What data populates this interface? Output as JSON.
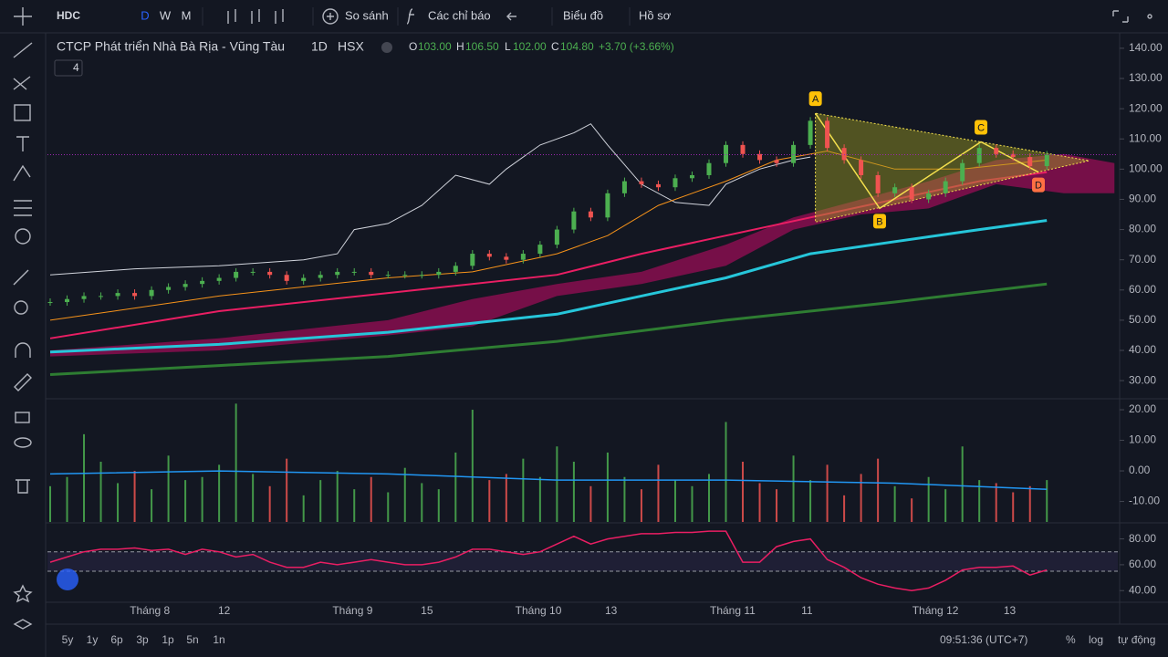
{
  "toolbar": {
    "symbol": "HDC",
    "intervals": [
      "D",
      "W",
      "M"
    ],
    "compare": "So sánh",
    "indicators": "Các chỉ báo",
    "chart": "Biểu đồ",
    "profile": "Hồ sơ"
  },
  "legend": {
    "name": "CTCP Phát triển Nhà Bà Rịa - Vũng Tàu",
    "interval": "1D",
    "exchange": "HSX",
    "ohlc": [
      {
        "key": "O",
        "value": "103.00"
      },
      {
        "key": "H",
        "value": "106.50"
      },
      {
        "key": "L",
        "value": "102.00"
      },
      {
        "key": "C",
        "value": "104.80"
      }
    ],
    "change": "+3.70 (+3.66%)",
    "indicator_count": 4
  },
  "chart_data": {
    "type": "candlestick",
    "xlim": [
      0,
      63.2
    ],
    "xticks": [
      {
        "value": 5.9,
        "label": "Tháng 8"
      },
      {
        "value": 10.3,
        "label": "12"
      },
      {
        "value": 17.9,
        "label": "Tháng 9"
      },
      {
        "value": 22.3,
        "label": "15"
      },
      {
        "value": 28.9,
        "label": "Tháng 10"
      },
      {
        "value": 33.2,
        "label": "13"
      },
      {
        "value": 40.4,
        "label": "Tháng 11"
      },
      {
        "value": 44.8,
        "label": "11"
      },
      {
        "value": 52.4,
        "label": "Tháng 12"
      },
      {
        "value": 56.8,
        "label": "13"
      }
    ],
    "ylim": [
      24.6,
      144.5
    ],
    "yticks": [
      {
        "value": 140,
        "label": "140.00"
      },
      {
        "value": 130,
        "label": "130.00"
      },
      {
        "value": 120,
        "label": "120.00"
      },
      {
        "value": 110,
        "label": "110.00"
      },
      {
        "value": 100,
        "label": "100.00"
      },
      {
        "value": 90,
        "label": "90.00"
      },
      {
        "value": 80,
        "label": "80.00"
      },
      {
        "value": 70,
        "label": "70.00"
      },
      {
        "value": 60,
        "label": "60.00"
      },
      {
        "value": 50,
        "label": "50.00"
      },
      {
        "value": 40,
        "label": "40.00"
      },
      {
        "value": 30,
        "label": "30.00"
      }
    ],
    "values": [
      56,
      57,
      58,
      58,
      59,
      58,
      60,
      61,
      62,
      63,
      64,
      66,
      66,
      65,
      63,
      64,
      65,
      66,
      66,
      65,
      65,
      65,
      65,
      66,
      68,
      72,
      71,
      70,
      72,
      75,
      80,
      86,
      84,
      92,
      96,
      95,
      94,
      97,
      98,
      102,
      108,
      105,
      103,
      102,
      108,
      116,
      107,
      103,
      98,
      92,
      94,
      90,
      92,
      96,
      102,
      107,
      105,
      104,
      101,
      104.8
    ],
    "up_color": "#4caf50",
    "down_color": "#ef5350",
    "series": [
      {
        "color": "#d1d4dc",
        "width": 1,
        "x": [
          0,
          5,
          10,
          15,
          17,
          18,
          20,
          22,
          24,
          26,
          27,
          29,
          31,
          32,
          33,
          35,
          37,
          39,
          40,
          42,
          44,
          45
        ],
        "values": [
          65,
          67,
          68,
          70,
          72,
          80,
          82,
          88,
          98,
          95,
          100,
          108,
          112,
          115,
          108,
          95,
          89,
          88,
          95,
          100,
          103,
          104
        ]
      },
      {
        "color": "#f7931a",
        "width": 1,
        "x": [
          0,
          10,
          20,
          25,
          30,
          33,
          36,
          40,
          43,
          46,
          50,
          54,
          59
        ],
        "values": [
          50,
          58,
          64,
          66,
          72,
          78,
          88,
          96,
          103,
          106,
          100,
          100,
          103
        ]
      },
      {
        "color": "#e91e63",
        "width": 2,
        "x": [
          0,
          10,
          20,
          30,
          35,
          40,
          45,
          50,
          55,
          59
        ],
        "values": [
          44,
          53,
          59,
          65,
          72,
          78,
          84,
          90,
          96,
          99
        ]
      },
      {
        "color": "#26c6da",
        "width": 3,
        "x": [
          0,
          10,
          20,
          30,
          40,
          45,
          50,
          55,
          59
        ],
        "values": [
          39.5,
          42,
          46,
          52,
          64,
          72,
          76,
          80,
          83
        ]
      },
      {
        "color": "#2e7d32",
        "width": 3,
        "x": [
          0,
          10,
          20,
          30,
          40,
          50,
          59
        ],
        "values": [
          32,
          35,
          38,
          43,
          50,
          56,
          62
        ]
      }
    ],
    "cloud": {
      "color": "#880e4f",
      "x": [
        0,
        10,
        20,
        25,
        30,
        35,
        40,
        44,
        48,
        52,
        56,
        60,
        63
      ],
      "upper": [
        40,
        44,
        50,
        57,
        62,
        66,
        75,
        84,
        90,
        96,
        103,
        105,
        102
      ],
      "lower": [
        38,
        40,
        45,
        48,
        58,
        62,
        68,
        80,
        85,
        87,
        95,
        92,
        92
      ]
    },
    "pattern": {
      "labels": [
        "A",
        "B",
        "C",
        "D"
      ],
      "label_colors": [
        "#ffc107",
        "#ffc107",
        "#ffc107",
        "#ff7043"
      ],
      "x": [
        45.3,
        49.1,
        55.1,
        58.5
      ],
      "values": [
        118.5,
        87,
        109,
        99
      ],
      "triangle": {
        "x": [
          45.3,
          45.3,
          61.5
        ],
        "values": [
          118.5,
          82.5,
          102.8
        ]
      },
      "color": "#f4e04d"
    },
    "volume": {
      "type": "bar",
      "ylim": [
        -16.7,
        22.7
      ],
      "yticks": [
        {
          "value": 20,
          "label": "20.00"
        },
        {
          "value": 10,
          "label": "10.00"
        },
        {
          "value": 0,
          "label": "0.00"
        },
        {
          "value": -10,
          "label": "-10.00"
        }
      ],
      "values": [
        -5,
        -2,
        12,
        3,
        -4,
        0,
        -6,
        5,
        -3,
        -2,
        2,
        22,
        -1,
        -5,
        4,
        -8,
        -3,
        0,
        -6,
        -2,
        -7,
        1,
        -4,
        -6,
        6,
        20,
        -3,
        -1,
        4,
        -2,
        8,
        3,
        -5,
        6,
        -2,
        -6,
        2,
        -3,
        -5,
        -1,
        16,
        3,
        -4,
        -6,
        5,
        -3,
        2,
        -8,
        -1,
        4,
        -5,
        -9,
        -2,
        -6,
        8,
        -3,
        -4,
        -7,
        -5,
        -3
      ],
      "line": {
        "color": "#2196f3",
        "x": [
          0,
          10,
          20,
          30,
          40,
          50,
          59
        ],
        "values": [
          -1,
          0,
          -1,
          -3,
          -3,
          -4,
          -6
        ]
      }
    },
    "rsi": {
      "type": "line",
      "color": "#e91e63",
      "ylim": [
        32.4,
        91
      ],
      "yticks": [
        {
          "value": 80,
          "label": "80.00"
        },
        {
          "value": 60,
          "label": "60.00"
        },
        {
          "value": 40,
          "label": "40.00"
        }
      ],
      "bands": [
        70,
        55
      ],
      "values": [
        62,
        66,
        70,
        72,
        72,
        73,
        71,
        72,
        68,
        72,
        70,
        66,
        68,
        62,
        58,
        58,
        62,
        60,
        62,
        64,
        62,
        60,
        60,
        62,
        66,
        72,
        72,
        70,
        68,
        70,
        76,
        82,
        76,
        80,
        82,
        84,
        84,
        85,
        85,
        86,
        86,
        62,
        62,
        74,
        78,
        80,
        64,
        58,
        50,
        45,
        42,
        40,
        42,
        48,
        56,
        58,
        58,
        59,
        52,
        56
      ]
    }
  },
  "footer": {
    "ranges": [
      "5y",
      "1y",
      "6p",
      "3p",
      "1p",
      "5n",
      "1n"
    ],
    "clock": "09:51:36 (UTC+7)",
    "percent": "%",
    "log": "log",
    "auto": "tự động"
  }
}
